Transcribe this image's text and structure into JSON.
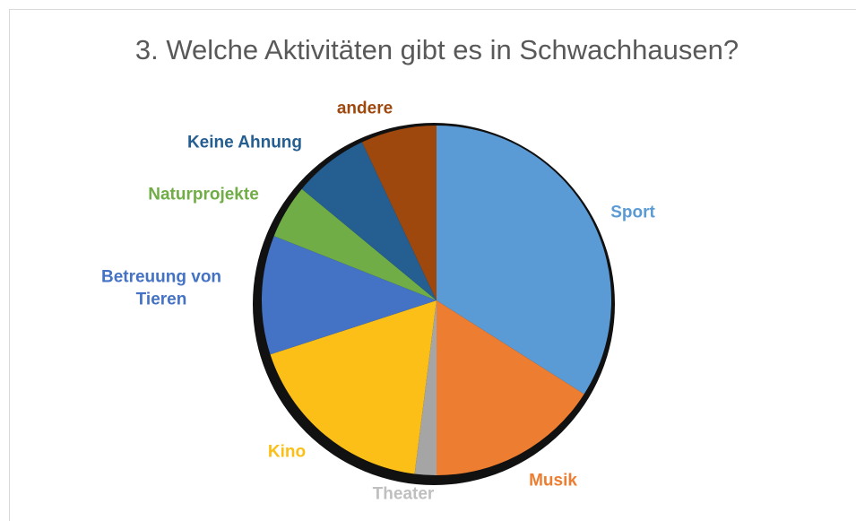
{
  "chart_data": {
    "type": "pie",
    "title": "3. Welche Aktivitäten gibt es in Schwachhausen?",
    "categories": [
      "Sport",
      "Musik",
      "Theater",
      "Kino",
      "Betreuung von Tieren",
      "Naturprojekte",
      "Keine Ahnung",
      "andere"
    ],
    "values": [
      34,
      16,
      2,
      18,
      11,
      5,
      7,
      7
    ],
    "colors": [
      "#5b9bd5",
      "#ed7d31",
      "#a5a5a5",
      "#fbbf17",
      "#4472c4",
      "#70ad47",
      "#255e91",
      "#9e480e"
    ]
  }
}
